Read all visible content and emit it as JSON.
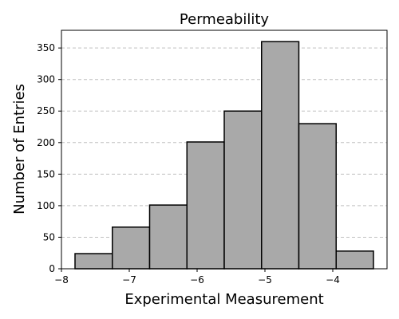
{
  "chart_data": {
    "type": "bar",
    "subtype": "histogram",
    "title": "Permeability",
    "xlabel": "Experimental Measurement",
    "ylabel": "Number of Entries",
    "xlim": [
      -8.0,
      -3.2
    ],
    "ylim": [
      0,
      378
    ],
    "bins": [
      {
        "x0": -7.8,
        "x1": -7.25,
        "value": 24
      },
      {
        "x0": -7.25,
        "x1": -6.7,
        "value": 66
      },
      {
        "x0": -6.7,
        "x1": -6.15,
        "value": 101
      },
      {
        "x0": -6.15,
        "x1": -5.6,
        "value": 201
      },
      {
        "x0": -5.6,
        "x1": -5.05,
        "value": 250
      },
      {
        "x0": -5.05,
        "x1": -4.5,
        "value": 360
      },
      {
        "x0": -4.5,
        "x1": -3.95,
        "value": 230
      },
      {
        "x0": -3.95,
        "x1": -3.4,
        "value": 28
      }
    ],
    "xticks": [
      {
        "value": -8,
        "label": "−8"
      },
      {
        "value": -7,
        "label": "−7"
      },
      {
        "value": -6,
        "label": "−6"
      },
      {
        "value": -5,
        "label": "−5"
      },
      {
        "value": -4,
        "label": "−4"
      }
    ],
    "yticks": [
      {
        "value": 0,
        "label": "0"
      },
      {
        "value": 50,
        "label": "50"
      },
      {
        "value": 100,
        "label": "100"
      },
      {
        "value": 150,
        "label": "150"
      },
      {
        "value": 200,
        "label": "200"
      },
      {
        "value": 250,
        "label": "250"
      },
      {
        "value": 300,
        "label": "300"
      },
      {
        "value": 350,
        "label": "350"
      }
    ],
    "grid": {
      "x": false,
      "y": true,
      "style": "dashed"
    },
    "legend": "none",
    "colors": {
      "bar_fill": "#a9a9a9",
      "bar_edge": "#000000",
      "grid": "#bfbfbf",
      "axis": "#000000"
    }
  }
}
